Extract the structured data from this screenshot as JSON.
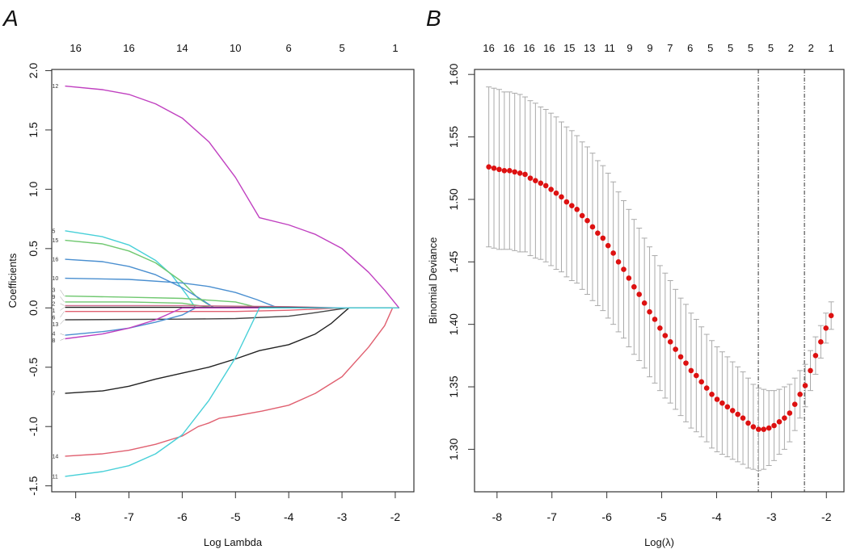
{
  "chart_data": [
    {
      "type": "line",
      "panel_label": "A",
      "title": "",
      "xlabel": "Log Lambda",
      "ylabel": "Coefficients",
      "xlim": [
        -8.45,
        -1.65
      ],
      "ylim": [
        -1.55,
        2.01
      ],
      "x_ticks": [
        "-8",
        "-7",
        "-6",
        "-5",
        "-4",
        "-3",
        "-2"
      ],
      "x_tick_values": [
        -8,
        -7,
        -6,
        -5,
        -4,
        -3,
        -2
      ],
      "y_ticks": [
        "-1.5",
        "-1.0",
        "-0.5",
        "0.0",
        "0.5",
        "1.0",
        "1.5",
        "2.0"
      ],
      "y_tick_values": [
        -1.5,
        -1.0,
        -0.5,
        0.0,
        0.5,
        1.0,
        1.5,
        2.0
      ],
      "top_axis_labels": [
        "16",
        "16",
        "14",
        "10",
        "6",
        "5",
        "1"
      ],
      "series": [
        {
          "name": "12",
          "color": "#c040c0",
          "points": [
            [
              -8.2,
              1.87
            ],
            [
              -7.5,
              1.84
            ],
            [
              -7,
              1.8
            ],
            [
              -6.5,
              1.72
            ],
            [
              -6,
              1.6
            ],
            [
              -5.5,
              1.4
            ],
            [
              -5,
              1.1
            ],
            [
              -4.55,
              0.76
            ],
            [
              -4,
              0.7
            ],
            [
              -3.5,
              0.62
            ],
            [
              -3,
              0.5
            ],
            [
              -2.5,
              0.3
            ],
            [
              -2.2,
              0.15
            ],
            [
              -1.93,
              0
            ]
          ]
        },
        {
          "name": "5",
          "color": "#48d0d8",
          "points": [
            [
              -8.2,
              0.65
            ],
            [
              -7.5,
              0.6
            ],
            [
              -7,
              0.53
            ],
            [
              -6.5,
              0.4
            ],
            [
              -6.2,
              0.28
            ],
            [
              -5.9,
              0.1
            ],
            [
              -5.75,
              0
            ],
            [
              -1.93,
              0
            ]
          ]
        },
        {
          "name": "15",
          "color": "#70c870",
          "points": [
            [
              -8.2,
              0.57
            ],
            [
              -7.5,
              0.54
            ],
            [
              -7,
              0.48
            ],
            [
              -6.5,
              0.38
            ],
            [
              -6,
              0.22
            ],
            [
              -5.7,
              0.08
            ],
            [
              -5.4,
              0
            ],
            [
              -1.93,
              0
            ]
          ]
        },
        {
          "name": "16",
          "color": "#4a8fd0",
          "points": [
            [
              -8.2,
              0.41
            ],
            [
              -7.5,
              0.39
            ],
            [
              -7,
              0.35
            ],
            [
              -6.5,
              0.28
            ],
            [
              -6,
              0.17
            ],
            [
              -5.6,
              0.06
            ],
            [
              -5.4,
              0
            ],
            [
              -1.93,
              0
            ]
          ]
        },
        {
          "name": "10",
          "color": "#4a8fd0",
          "points": [
            [
              -8.2,
              0.25
            ],
            [
              -7,
              0.24
            ],
            [
              -6,
              0.21
            ],
            [
              -5.5,
              0.18
            ],
            [
              -5,
              0.13
            ],
            [
              -4.6,
              0.07
            ],
            [
              -4.2,
              0
            ],
            [
              -1.93,
              0
            ]
          ]
        },
        {
          "name": "3",
          "color": "#70c870",
          "points": [
            [
              -8.2,
              0.1
            ],
            [
              -7,
              0.09
            ],
            [
              -6,
              0.08
            ],
            [
              -5,
              0.05
            ],
            [
              -4.55,
              0
            ],
            [
              -1.93,
              0
            ]
          ]
        },
        {
          "name": "9",
          "color": "#70c870",
          "points": [
            [
              -8.2,
              0.05
            ],
            [
              -7,
              0.05
            ],
            [
              -6,
              0.04
            ],
            [
              -5.4,
              0
            ],
            [
              -1.93,
              0
            ]
          ]
        },
        {
          "name": "2",
          "color": "#d07090",
          "points": [
            [
              -8.2,
              0.02
            ],
            [
              -6,
              0.02
            ],
            [
              -4,
              0.01
            ],
            [
              -3,
              0
            ],
            [
              -1.93,
              0
            ]
          ]
        },
        {
          "name": "1",
          "color": "#222222",
          "points": [
            [
              -8.2,
              0.005
            ],
            [
              -4,
              0.005
            ],
            [
              -3,
              0
            ],
            [
              -1.93,
              0
            ]
          ]
        },
        {
          "name": "6",
          "color": "#e06070",
          "points": [
            [
              -8.2,
              -0.03
            ],
            [
              -5,
              -0.03
            ],
            [
              -4,
              -0.02
            ],
            [
              -3,
              0
            ],
            [
              -1.93,
              0
            ]
          ]
        },
        {
          "name": "13",
          "color": "#444444",
          "points": [
            [
              -8.2,
              -0.1
            ],
            [
              -6,
              -0.095
            ],
            [
              -5,
              -0.09
            ],
            [
              -4,
              -0.07
            ],
            [
              -3.5,
              -0.04
            ],
            [
              -2.9,
              0
            ],
            [
              -1.93,
              0
            ]
          ]
        },
        {
          "name": "4",
          "color": "#4a8fd0",
          "points": [
            [
              -8.2,
              -0.23
            ],
            [
              -7.5,
              -0.2
            ],
            [
              -7,
              -0.17
            ],
            [
              -6.5,
              -0.12
            ],
            [
              -6,
              -0.06
            ],
            [
              -5.75,
              0
            ],
            [
              -1.93,
              0
            ]
          ]
        },
        {
          "name": "8",
          "color": "#c040c0",
          "points": [
            [
              -8.2,
              -0.26
            ],
            [
              -7.5,
              -0.22
            ],
            [
              -7,
              -0.17
            ],
            [
              -6.5,
              -0.1
            ],
            [
              -6,
              0
            ],
            [
              -1.93,
              0
            ]
          ]
        },
        {
          "name": "7",
          "color": "#222222",
          "points": [
            [
              -8.2,
              -0.72
            ],
            [
              -7.5,
              -0.7
            ],
            [
              -7,
              -0.66
            ],
            [
              -6.5,
              -0.6
            ],
            [
              -6,
              -0.55
            ],
            [
              -5.5,
              -0.5
            ],
            [
              -5,
              -0.43
            ],
            [
              -4.55,
              -0.36
            ],
            [
              -4,
              -0.31
            ],
            [
              -3.5,
              -0.22
            ],
            [
              -3.2,
              -0.13
            ],
            [
              -2.87,
              0
            ],
            [
              -1.93,
              0
            ]
          ]
        },
        {
          "name": "14",
          "color": "#e06070",
          "points": [
            [
              -8.2,
              -1.25
            ],
            [
              -7.5,
              -1.23
            ],
            [
              -7,
              -1.2
            ],
            [
              -6.5,
              -1.15
            ],
            [
              -6,
              -1.08
            ],
            [
              -5.7,
              -1.0
            ],
            [
              -5.5,
              -0.97
            ],
            [
              -5.3,
              -0.93
            ],
            [
              -5,
              -0.91
            ],
            [
              -4.5,
              -0.87
            ],
            [
              -4,
              -0.82
            ],
            [
              -3.5,
              -0.72
            ],
            [
              -3,
              -0.58
            ],
            [
              -2.5,
              -0.33
            ],
            [
              -2.2,
              -0.15
            ],
            [
              -2.05,
              0
            ],
            [
              -1.93,
              0
            ]
          ]
        },
        {
          "name": "11",
          "color": "#48d0d8",
          "points": [
            [
              -8.2,
              -1.42
            ],
            [
              -7.5,
              -1.38
            ],
            [
              -7,
              -1.33
            ],
            [
              -6.5,
              -1.23
            ],
            [
              -6,
              -1.07
            ],
            [
              -5.5,
              -0.78
            ],
            [
              -5,
              -0.42
            ],
            [
              -4.55,
              0
            ],
            [
              -1.93,
              0
            ]
          ]
        }
      ]
    },
    {
      "type": "scatter",
      "panel_label": "B",
      "title": "",
      "xlabel": "Log(λ)",
      "ylabel": "Binomial Deviance",
      "xlim": [
        -8.41,
        -1.68
      ],
      "ylim": [
        1.266,
        1.604
      ],
      "x_ticks": [
        "-8",
        "-7",
        "-6",
        "-5",
        "-4",
        "-3",
        "-2"
      ],
      "x_tick_values": [
        -8,
        -7,
        -6,
        -5,
        -4,
        -3,
        -2
      ],
      "y_ticks": [
        "1.30",
        "1.35",
        "1.40",
        "1.45",
        "1.50",
        "1.55",
        "1.60"
      ],
      "y_tick_values": [
        1.3,
        1.35,
        1.4,
        1.45,
        1.5,
        1.55,
        1.6
      ],
      "top_axis_labels": [
        "16",
        "16",
        "16",
        "16",
        "15",
        "13",
        "11",
        "9",
        "9",
        "7",
        "6",
        "5",
        "5",
        "5",
        "5",
        "2",
        "2",
        "1"
      ],
      "point_color": "#dd1111",
      "errorbar_color": "#aaaaaa",
      "vlines": [
        -3.24,
        -2.4
      ],
      "log_lambda": [
        -8.15,
        -8.056,
        -7.961,
        -7.867,
        -7.772,
        -7.678,
        -7.583,
        -7.489,
        -7.394,
        -7.3,
        -7.205,
        -7.111,
        -7.016,
        -6.922,
        -6.827,
        -6.733,
        -6.638,
        -6.544,
        -6.449,
        -6.355,
        -6.26,
        -6.166,
        -6.071,
        -5.977,
        -5.882,
        -5.788,
        -5.693,
        -5.599,
        -5.504,
        -5.41,
        -5.315,
        -5.221,
        -5.126,
        -5.032,
        -4.937,
        -4.843,
        -4.748,
        -4.654,
        -4.559,
        -4.465,
        -4.37,
        -4.276,
        -4.181,
        -4.087,
        -3.992,
        -3.898,
        -3.803,
        -3.709,
        -3.614,
        -3.52,
        -3.425,
        -3.331,
        -3.236,
        -3.142,
        -3.047,
        -2.953,
        -2.858,
        -2.764,
        -2.669,
        -2.575,
        -2.48,
        -2.386,
        -2.291,
        -2.197,
        -2.102,
        -2.008,
        -1.913
      ],
      "mean": [
        1.526,
        1.525,
        1.524,
        1.523,
        1.523,
        1.522,
        1.521,
        1.52,
        1.517,
        1.515,
        1.513,
        1.511,
        1.508,
        1.505,
        1.502,
        1.498,
        1.495,
        1.492,
        1.487,
        1.483,
        1.478,
        1.473,
        1.469,
        1.463,
        1.457,
        1.45,
        1.444,
        1.437,
        1.43,
        1.424,
        1.417,
        1.41,
        1.404,
        1.397,
        1.391,
        1.386,
        1.38,
        1.374,
        1.369,
        1.363,
        1.359,
        1.354,
        1.349,
        1.344,
        1.34,
        1.337,
        1.334,
        1.331,
        1.328,
        1.325,
        1.321,
        1.318,
        1.316,
        1.316,
        1.317,
        1.319,
        1.322,
        1.325,
        1.329,
        1.336,
        1.344,
        1.351,
        1.363,
        1.375,
        1.386,
        1.397,
        1.407
      ],
      "se": [
        0.064,
        0.064,
        0.064,
        0.063,
        0.063,
        0.063,
        0.063,
        0.062,
        0.062,
        0.062,
        0.061,
        0.061,
        0.061,
        0.061,
        0.06,
        0.06,
        0.06,
        0.059,
        0.059,
        0.059,
        0.059,
        0.058,
        0.058,
        0.058,
        0.057,
        0.056,
        0.055,
        0.055,
        0.054,
        0.053,
        0.052,
        0.052,
        0.051,
        0.05,
        0.05,
        0.049,
        0.048,
        0.047,
        0.047,
        0.046,
        0.045,
        0.044,
        0.043,
        0.043,
        0.042,
        0.041,
        0.04,
        0.039,
        0.038,
        0.037,
        0.036,
        0.034,
        0.033,
        0.032,
        0.03,
        0.028,
        0.026,
        0.025,
        0.023,
        0.021,
        0.019,
        0.017,
        0.016,
        0.015,
        0.013,
        0.012,
        0.011
      ]
    }
  ]
}
